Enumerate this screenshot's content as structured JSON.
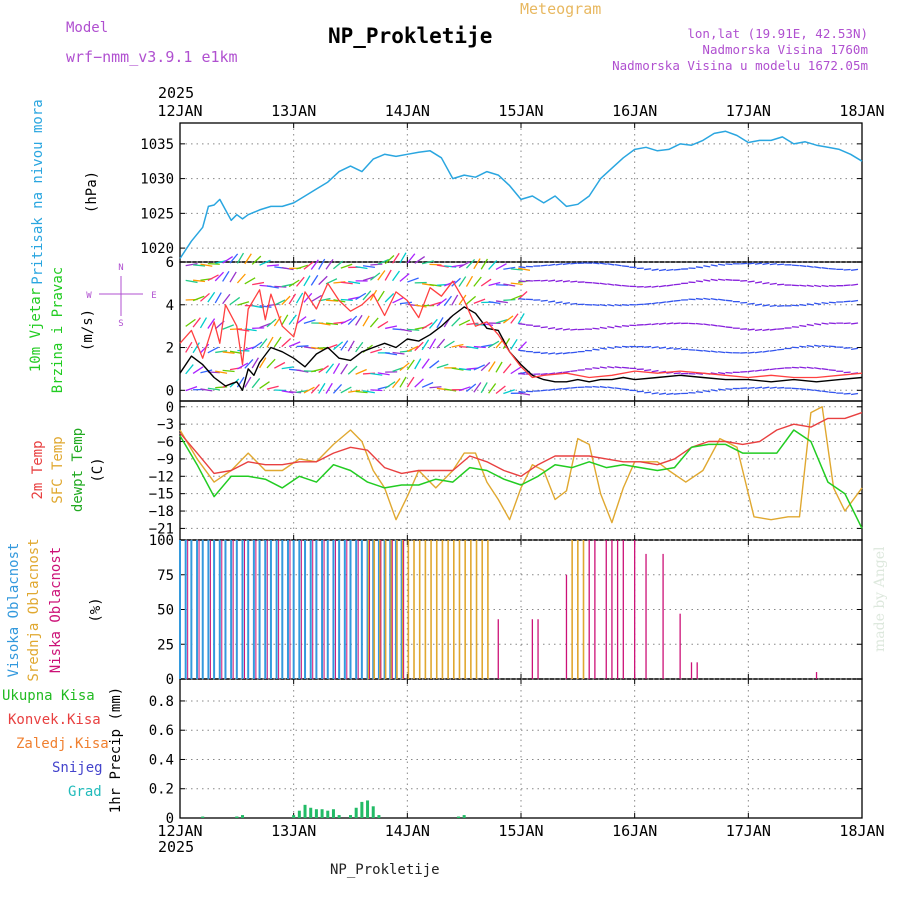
{
  "header": {
    "model_label": "Model",
    "model_name": "wrf−nmm_v3.9.1  e1km",
    "station": "NP_Prokletije",
    "meteogram": "Meteogram",
    "lonlat": "lon,lat (19.91E, 42.53N)",
    "elevation": "Nadmorska Visina 1760m",
    "model_elevation": "Nadmorska Visina u modelu 1672.05m",
    "footer_station": "NP_Prokletije",
    "made_by": "made by Angel",
    "year_top": "2025",
    "year_bottom": "2025"
  },
  "colors": {
    "pressure": "#2aa6e0",
    "temp2m": "#e84040",
    "sfc": "#e0a830",
    "dewpt": "#22cc22",
    "wind_black": "#000000",
    "wind_red": "#ff4040",
    "model": "#b050d0",
    "high_cloud": "#3399dd",
    "mid_cloud": "#e0a830",
    "low_cloud": "#cc1177",
    "precip_total": "#22bb22",
    "precip_conv": "#e84040",
    "precip_frozen": "#f08030",
    "snow": "#4444cc",
    "hail": "#22bbbb"
  },
  "chart_data": [
    {
      "type": "line",
      "panel": "pressure",
      "ylabel_title": "Pritisak na nivou mora",
      "ylabel_unit": "(hPa)",
      "x_ticks": [
        "12JAN",
        "13JAN",
        "14JAN",
        "15JAN",
        "16JAN",
        "17JAN",
        "18JAN"
      ],
      "yticks": [
        1020,
        1025,
        1030,
        1035
      ],
      "ylim": [
        1018,
        1038
      ],
      "grid": true,
      "series": [
        {
          "x": [
            0,
            0.1,
            0.2,
            0.25,
            0.3,
            0.35,
            0.4,
            0.45,
            0.5,
            0.55,
            0.6,
            0.7,
            0.8,
            0.9,
            1.0,
            1.1,
            1.2,
            1.3,
            1.4,
            1.5,
            1.6,
            1.7,
            1.8,
            1.9,
            2.0,
            2.1,
            2.2,
            2.3,
            2.4,
            2.5,
            2.6,
            2.7,
            2.8,
            2.9,
            3.0,
            3.1,
            3.2,
            3.3,
            3.4,
            3.5,
            3.6,
            3.7,
            3.8,
            3.9,
            4.0,
            4.1,
            4.2,
            4.3,
            4.4,
            4.5,
            4.6,
            4.7,
            4.8,
            4.9,
            5.0,
            5.1,
            5.2,
            5.3,
            5.4,
            5.5,
            5.6,
            5.7,
            5.8,
            5.9,
            6.0
          ],
          "values": [
            1018.5,
            1021.0,
            1023.0,
            1026.0,
            1026.2,
            1027.0,
            1025.5,
            1024.0,
            1024.8,
            1024.2,
            1024.8,
            1025.5,
            1026.0,
            1026.0,
            1026.5,
            1027.5,
            1028.5,
            1029.5,
            1031.0,
            1031.8,
            1031.0,
            1032.8,
            1033.5,
            1033.2,
            1033.5,
            1033.8,
            1034.0,
            1033.0,
            1030.0,
            1030.5,
            1030.2,
            1031.0,
            1030.5,
            1029.0,
            1027.0,
            1027.5,
            1026.5,
            1027.5,
            1026.0,
            1026.3,
            1027.5,
            1030.0,
            1031.5,
            1033.0,
            1034.2,
            1034.5,
            1034.0,
            1034.2,
            1035.0,
            1034.8,
            1035.5,
            1036.5,
            1036.8,
            1036.2,
            1035.2,
            1035.5,
            1035.5,
            1036.0,
            1035.0,
            1035.3,
            1034.8,
            1034.5,
            1034.2,
            1033.5,
            1032.5
          ]
        }
      ]
    },
    {
      "type": "line",
      "panel": "wind",
      "ylabel_title_a": "10m Vjetar",
      "ylabel_title_b": "Brzina i Pravac",
      "ylabel_unit": "(m/s)",
      "compass": "N W E S",
      "yticks": [
        0,
        2,
        4,
        6
      ],
      "ylim": [
        -0.5,
        6
      ],
      "grid": true,
      "series": [
        {
          "name": "speed",
          "x": [
            0,
            0.1,
            0.2,
            0.3,
            0.4,
            0.5,
            0.55,
            0.6,
            0.65,
            0.7,
            0.8,
            0.9,
            1.0,
            1.1,
            1.2,
            1.3,
            1.4,
            1.5,
            1.6,
            1.7,
            1.8,
            1.9,
            2.0,
            2.1,
            2.2,
            2.3,
            2.4,
            2.5,
            2.6,
            2.7,
            2.8,
            2.9,
            3.0,
            3.1,
            3.2,
            3.3,
            3.4,
            3.5,
            3.6,
            3.7,
            3.8,
            3.9,
            4.0,
            4.2,
            4.4,
            4.6,
            4.8,
            5.0,
            5.2,
            5.4,
            5.6,
            5.8,
            6.0
          ],
          "values": [
            0.8,
            1.6,
            1.2,
            0.6,
            0.2,
            0.4,
            0.0,
            1.0,
            0.7,
            1.3,
            2.0,
            1.8,
            1.5,
            1.1,
            1.7,
            2.0,
            1.5,
            1.4,
            1.8,
            2.0,
            2.2,
            2.0,
            2.4,
            2.3,
            2.6,
            3.0,
            3.5,
            3.9,
            3.6,
            2.9,
            2.8,
            1.8,
            1.2,
            0.7,
            0.5,
            0.4,
            0.4,
            0.5,
            0.4,
            0.5,
            0.5,
            0.6,
            0.5,
            0.6,
            0.7,
            0.6,
            0.5,
            0.5,
            0.4,
            0.5,
            0.4,
            0.5,
            0.6
          ]
        },
        {
          "name": "gust",
          "x": [
            0,
            0.1,
            0.2,
            0.3,
            0.35,
            0.4,
            0.5,
            0.55,
            0.6,
            0.7,
            0.75,
            0.8,
            0.9,
            1.0,
            1.1,
            1.2,
            1.3,
            1.4,
            1.5,
            1.6,
            1.7,
            1.8,
            1.9,
            2.0,
            2.1,
            2.2,
            2.3,
            2.4,
            2.5,
            2.6,
            2.7,
            2.8,
            2.9,
            3.0,
            3.1,
            3.2,
            3.4,
            3.6,
            3.8,
            4.0,
            4.2,
            4.4,
            4.6,
            4.8,
            5.0,
            5.2,
            5.4,
            5.6,
            5.8,
            6.0
          ],
          "values": [
            2.2,
            2.8,
            1.5,
            3.2,
            2.2,
            4.0,
            3.0,
            1.2,
            3.8,
            4.7,
            3.3,
            4.5,
            3.0,
            2.5,
            4.6,
            3.8,
            5.0,
            4.2,
            3.7,
            4.0,
            4.5,
            3.5,
            4.6,
            4.2,
            3.4,
            4.8,
            4.4,
            5.1,
            4.2,
            3.0,
            3.2,
            2.6,
            1.8,
            1.1,
            0.6,
            0.7,
            0.8,
            0.6,
            0.7,
            0.9,
            0.8,
            0.9,
            0.8,
            0.7,
            0.6,
            0.7,
            0.6,
            0.6,
            0.7,
            0.8
          ]
        }
      ]
    },
    {
      "type": "line",
      "panel": "temperature",
      "ylabel_title_a": "2m Temp",
      "ylabel_title_b": "SFC Temp",
      "ylabel_title_c": "dewpt Temp",
      "ylabel_unit": "(C)",
      "yticks": [
        0,
        -3,
        -6,
        -9,
        -12,
        -15,
        -18,
        -21
      ],
      "ylim": [
        -23,
        1
      ],
      "grid": true,
      "series": [
        {
          "name": "2m Temp",
          "x": [
            0,
            0.15,
            0.3,
            0.45,
            0.6,
            0.75,
            0.9,
            1.05,
            1.2,
            1.35,
            1.5,
            1.65,
            1.8,
            1.95,
            2.1,
            2.25,
            2.4,
            2.55,
            2.7,
            2.85,
            3.0,
            3.15,
            3.3,
            3.45,
            3.6,
            3.75,
            3.9,
            4.05,
            4.2,
            4.35,
            4.5,
            4.65,
            4.8,
            4.95,
            5.1,
            5.25,
            5.4,
            5.55,
            5.7,
            5.85,
            6.0
          ],
          "values": [
            -4.5,
            -8,
            -11.5,
            -11,
            -9.5,
            -10,
            -10,
            -9.5,
            -9.5,
            -8,
            -7,
            -7.5,
            -10.5,
            -11.5,
            -11,
            -11,
            -11,
            -8.5,
            -9.5,
            -11,
            -12,
            -10,
            -8.5,
            -8.5,
            -8.5,
            -9,
            -9.5,
            -9.5,
            -10,
            -9,
            -7,
            -6,
            -6,
            -6.5,
            -6,
            -4,
            -3,
            -3.5,
            -2,
            -2,
            -1
          ]
        },
        {
          "name": "SFC Temp",
          "x": [
            0,
            0.15,
            0.3,
            0.45,
            0.6,
            0.75,
            0.9,
            1.05,
            1.2,
            1.35,
            1.5,
            1.6,
            1.7,
            1.8,
            1.9,
            2.0,
            2.1,
            2.25,
            2.4,
            2.5,
            2.6,
            2.7,
            2.8,
            2.9,
            3.0,
            3.1,
            3.2,
            3.3,
            3.4,
            3.5,
            3.6,
            3.7,
            3.8,
            3.9,
            4.0,
            4.2,
            4.3,
            4.45,
            4.6,
            4.75,
            4.9,
            5.05,
            5.2,
            5.35,
            5.45,
            5.55,
            5.65,
            5.75,
            5.85,
            6.0
          ],
          "values": [
            -4,
            -9,
            -13,
            -11,
            -8,
            -11,
            -11,
            -9,
            -9.5,
            -6.5,
            -4,
            -6,
            -11,
            -14,
            -19.5,
            -15.5,
            -11,
            -14,
            -11,
            -8,
            -8,
            -13,
            -16,
            -19.5,
            -14,
            -10,
            -11,
            -16,
            -14.5,
            -5.5,
            -6.5,
            -15,
            -20,
            -14,
            -9.5,
            -9.5,
            -11,
            -13,
            -11,
            -5.5,
            -7,
            -19,
            -19.5,
            -19,
            -19,
            -1,
            0,
            -14,
            -18,
            -14
          ]
        },
        {
          "name": "dewpt Temp",
          "x": [
            0,
            0.15,
            0.3,
            0.45,
            0.6,
            0.75,
            0.9,
            1.05,
            1.2,
            1.35,
            1.5,
            1.65,
            1.8,
            1.95,
            2.1,
            2.25,
            2.4,
            2.55,
            2.7,
            2.85,
            3.0,
            3.15,
            3.3,
            3.45,
            3.6,
            3.75,
            3.9,
            4.05,
            4.2,
            4.35,
            4.5,
            4.65,
            4.8,
            4.95,
            5.1,
            5.25,
            5.4,
            5.55,
            5.7,
            5.85,
            6.0
          ],
          "values": [
            -5,
            -10,
            -15.5,
            -12,
            -12,
            -12.5,
            -14,
            -12,
            -13,
            -10,
            -11,
            -13,
            -14,
            -13.5,
            -13.5,
            -12.5,
            -13,
            -10.5,
            -11,
            -12.5,
            -13.5,
            -12,
            -10,
            -10.5,
            -9.5,
            -10.5,
            -10,
            -10.5,
            -11,
            -10.5,
            -7,
            -6.5,
            -6.5,
            -8,
            -8,
            -8,
            -4,
            -6,
            -13,
            -15,
            -21
          ]
        }
      ]
    },
    {
      "type": "bar",
      "panel": "clouds",
      "ylabel_title_a": "Visoka Oblacnost",
      "ylabel_title_b": "Srednja Oblacnost",
      "ylabel_title_c": "Niska Oblacnost",
      "ylabel_unit": "(%)",
      "yticks": [
        0,
        25,
        50,
        75,
        100
      ],
      "ylim": [
        0,
        100
      ],
      "grid": true,
      "series": [
        {
          "name": "high",
          "x_start": 0.0,
          "x_end": 2.0,
          "step": 0.05,
          "value": 100
        },
        {
          "name": "mid",
          "x_start": 1.65,
          "x_end": 2.7,
          "step": 0.05,
          "value": 100
        },
        {
          "name": "low_segments",
          "x": [
            2.8,
            3.1,
            3.15,
            3.4,
            3.5,
            3.6,
            3.65,
            3.75,
            3.8,
            3.85,
            3.9,
            4.0,
            4.1,
            4.25,
            4.4,
            4.5,
            4.55,
            5.6
          ],
          "values": [
            43,
            43,
            43,
            75,
            47,
            100,
            100,
            100,
            100,
            100,
            100,
            100,
            90,
            90,
            47,
            12,
            12,
            5
          ]
        }
      ]
    },
    {
      "type": "bar",
      "panel": "precip",
      "ylabel_unit": "1hr Precip (mm)",
      "legend": [
        "Ukupna Kisa",
        "Konvek.Kisa",
        "Zaledj.Kisa",
        "Snijeg",
        "Grad"
      ],
      "yticks": [
        0.2,
        0.4,
        0.6,
        0.8
      ],
      "ylim": [
        0,
        0.95
      ],
      "grid": true,
      "series": [
        {
          "name": "snow",
          "x": [
            0.2,
            0.5,
            0.5,
            0.55,
            1.0,
            1.05,
            1.1,
            1.15,
            1.2,
            1.25,
            1.3,
            1.35,
            1.4,
            1.5,
            1.55,
            1.6,
            1.65,
            1.7,
            1.75,
            2.45,
            2.5
          ],
          "values": [
            0.01,
            0.01,
            0.01,
            0.02,
            0.02,
            0.05,
            0.09,
            0.07,
            0.06,
            0.06,
            0.05,
            0.06,
            0.02,
            0.02,
            0.07,
            0.11,
            0.12,
            0.08,
            0.02,
            0.01,
            0.02
          ]
        }
      ]
    }
  ]
}
